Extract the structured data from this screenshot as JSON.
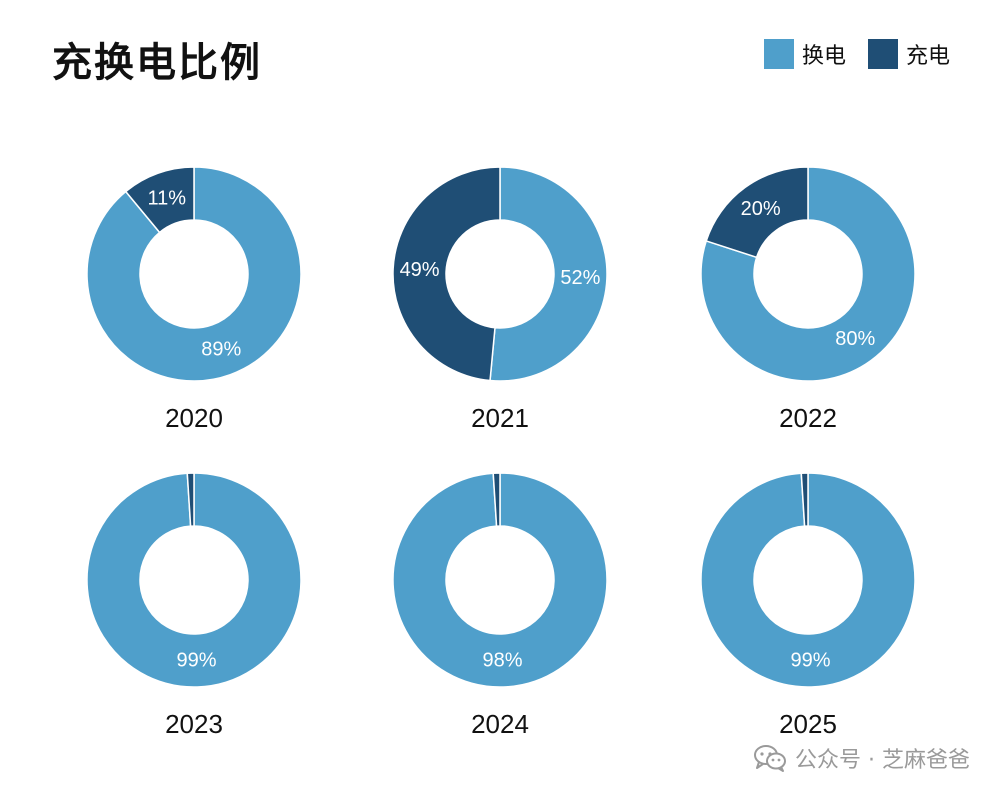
{
  "chart_data": {
    "type": "pie",
    "subtype": "donut",
    "title": "充换电比例",
    "series_names": [
      "换电",
      "充电"
    ],
    "colors": {
      "换电": "#4f9fcb",
      "充电": "#1f4e75",
      "label_text": "#ffffff",
      "year_text": "#111111"
    },
    "charts": [
      {
        "year": "2020",
        "values": [
          89,
          11
        ],
        "labels": [
          "89%",
          "11%"
        ]
      },
      {
        "year": "2021",
        "values": [
          52,
          49
        ],
        "labels": [
          "52%",
          "49%"
        ]
      },
      {
        "year": "2022",
        "values": [
          80,
          20
        ],
        "labels": [
          "80%",
          "20%"
        ]
      },
      {
        "year": "2023",
        "values": [
          99,
          1
        ],
        "labels": [
          "99%",
          ""
        ]
      },
      {
        "year": "2024",
        "values": [
          98,
          1
        ],
        "labels": [
          "98%",
          ""
        ]
      },
      {
        "year": "2025",
        "values": [
          99,
          1
        ],
        "labels": [
          "99%",
          ""
        ]
      }
    ]
  },
  "legend": {
    "items": [
      {
        "label": "换电",
        "color": "#4f9fcb"
      },
      {
        "label": "充电",
        "color": "#1f4e75"
      }
    ]
  },
  "watermark": {
    "icon": "wechat-icon",
    "text": "公众号 · 芝麻爸爸"
  }
}
